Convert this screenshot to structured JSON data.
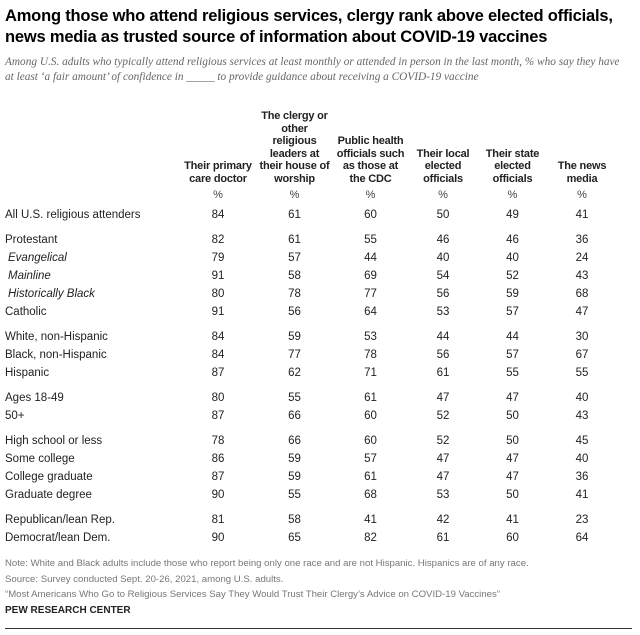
{
  "title": "Among those who attend religious services, clergy rank above elected officials, news media as trusted source of information about COVID-19 vaccines",
  "subtitle": "Among U.S. adults who typically attend religious services at least monthly or attended in person in the last month, % who say they have at least ‘a fair amount’ of confidence in _____ to provide guidance about receiving a COVID-19 vaccine",
  "chart_data": {
    "type": "table",
    "columns": [
      "Their primary\ncare doctor",
      "The clergy or\nother\nreligious\nleaders at\ntheir house of\nworship",
      "Public health\nofficials such\nas those at\nthe CDC",
      "Their local\nelected\nofficials",
      "Their state\nelected\nofficials",
      "The news\nmedia"
    ],
    "unit_label": "%",
    "rows": [
      {
        "label": "All U.S. religious attenders",
        "values": [
          84,
          61,
          60,
          50,
          49,
          41
        ],
        "italic": false,
        "group_start": false
      },
      {
        "label": "Protestant",
        "values": [
          82,
          61,
          55,
          46,
          46,
          36
        ],
        "italic": false,
        "group_start": true
      },
      {
        "label": "Evangelical",
        "values": [
          79,
          57,
          44,
          40,
          40,
          24
        ],
        "italic": true,
        "group_start": false
      },
      {
        "label": "Mainline",
        "values": [
          91,
          58,
          69,
          54,
          52,
          43
        ],
        "italic": true,
        "group_start": false
      },
      {
        "label": "Historically Black",
        "values": [
          80,
          78,
          77,
          56,
          59,
          68
        ],
        "italic": true,
        "group_start": false
      },
      {
        "label": "Catholic",
        "values": [
          91,
          56,
          64,
          53,
          57,
          47
        ],
        "italic": false,
        "group_start": false
      },
      {
        "label": "White, non-Hispanic",
        "values": [
          84,
          59,
          53,
          44,
          44,
          30
        ],
        "italic": false,
        "group_start": true
      },
      {
        "label": "Black, non-Hispanic",
        "values": [
          84,
          77,
          78,
          56,
          57,
          67
        ],
        "italic": false,
        "group_start": false
      },
      {
        "label": "Hispanic",
        "values": [
          87,
          62,
          71,
          61,
          55,
          55
        ],
        "italic": false,
        "group_start": false
      },
      {
        "label": "Ages 18-49",
        "values": [
          80,
          55,
          61,
          47,
          47,
          40
        ],
        "italic": false,
        "group_start": true
      },
      {
        "label": "50+",
        "values": [
          87,
          66,
          60,
          52,
          50,
          43
        ],
        "italic": false,
        "group_start": false
      },
      {
        "label": "High school or less",
        "values": [
          78,
          66,
          60,
          52,
          50,
          45
        ],
        "italic": false,
        "group_start": true
      },
      {
        "label": "Some college",
        "values": [
          86,
          59,
          57,
          47,
          47,
          40
        ],
        "italic": false,
        "group_start": false
      },
      {
        "label": "College graduate",
        "values": [
          87,
          59,
          61,
          47,
          47,
          36
        ],
        "italic": false,
        "group_start": false
      },
      {
        "label": "Graduate degree",
        "values": [
          90,
          55,
          68,
          53,
          50,
          41
        ],
        "italic": false,
        "group_start": false
      },
      {
        "label": "Republican/lean Rep.",
        "values": [
          81,
          58,
          41,
          42,
          41,
          23
        ],
        "italic": false,
        "group_start": true
      },
      {
        "label": "Democrat/lean Dem.",
        "values": [
          90,
          65,
          82,
          61,
          60,
          64
        ],
        "italic": false,
        "group_start": false
      }
    ]
  },
  "notes": {
    "note": "Note: White and Black adults include those who report being only one race and are not Hispanic. Hispanics are of any race.",
    "source": "Source: Survey conducted Sept. 20-26, 2021, among U.S. adults.",
    "report": "“Most Americans Who Go to Religious Services Say They Would Trust Their Clergy’s Advice on COVID-19 Vaccines”"
  },
  "brand": "PEW RESEARCH CENTER"
}
